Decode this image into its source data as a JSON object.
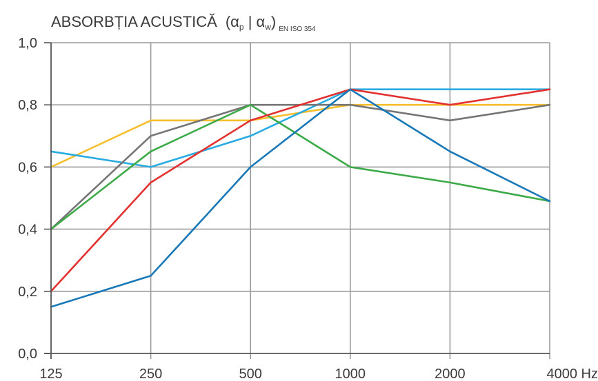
{
  "header": {
    "title": "ABSORBȚIA ACUSTICĂ",
    "symbol_open": "(α",
    "symbol_p": "p",
    "symbol_sep": " | α",
    "symbol_w": "w",
    "symbol_close": ")",
    "standard": "EN ISO 354"
  },
  "chart_data": {
    "type": "line",
    "title": "ABSORBȚIA ACUSTICĂ (αp | αw) EN ISO 354",
    "xlabel": "Hz",
    "ylabel": "",
    "categories": [
      "125",
      "250",
      "500",
      "1000",
      "2000",
      "4000"
    ],
    "y_tick_labels": [
      "0,0",
      "0,2",
      "0,4",
      "0,6",
      "0,8",
      "1,0"
    ],
    "x_unit": "Hz",
    "ylim": [
      0,
      1
    ],
    "grid": true,
    "legend": "none",
    "series": [
      {
        "color": "#f6be2c",
        "values": [
          0.6,
          0.75,
          0.75,
          0.8,
          0.8,
          0.8
        ]
      },
      {
        "color": "#29abe2",
        "values": [
          0.65,
          0.6,
          0.7,
          0.85,
          0.85,
          0.85
        ]
      },
      {
        "color": "#757575",
        "values": [
          0.4,
          0.7,
          0.8,
          0.8,
          0.75,
          0.8
        ]
      },
      {
        "color": "#3daa48",
        "values": [
          0.4,
          0.65,
          0.8,
          0.6,
          0.55,
          0.49
        ]
      },
      {
        "color": "#e2312e",
        "values": [
          0.2,
          0.55,
          0.75,
          0.85,
          0.8,
          0.85
        ]
      },
      {
        "color": "#1878b8",
        "values": [
          0.15,
          0.25,
          0.6,
          0.85,
          0.65,
          0.49
        ]
      }
    ]
  }
}
